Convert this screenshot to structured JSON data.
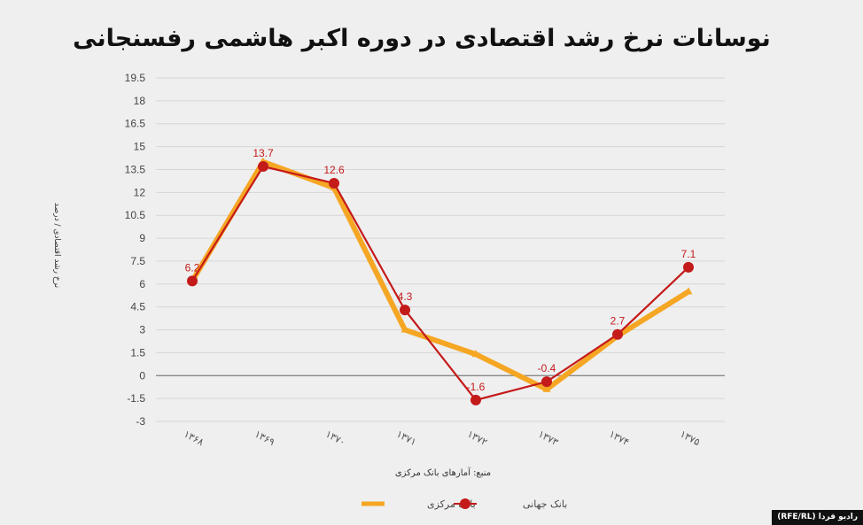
{
  "colors": {
    "background": "#efefef",
    "central_bank": "#f5a623",
    "world_bank": "#c41a1a",
    "label": "#c41a1a",
    "grid": "#d6d6d6",
    "zero_line": "#888888"
  },
  "credit": "رادیو فردا (RFE/RL)",
  "chart_data": {
    "type": "line",
    "title": "نوسانات نرخ رشد اقتصادی در دوره اکبر هاشمی رفسنجانی",
    "ylabel": "نرخ رشد اقتصادی / درصد",
    "source": "منبع: آمارهای بانک مرکزی",
    "categories": [
      "۱۳۶۸",
      "۱۳۶۹",
      "۱۳۷۰",
      "۱۳۷۱",
      "۱۳۷۲",
      "۱۳۷۳",
      "۱۳۷۴",
      "۱۳۷۵"
    ],
    "yticks": [
      "19.5",
      "18",
      "16.5",
      "15",
      "13.5",
      "12",
      "10.5",
      "9",
      "7.5",
      "6",
      "4.5",
      "3",
      "1.5",
      "0",
      "-1.5",
      "-3"
    ],
    "ylim": [
      -3,
      19.5
    ],
    "grid": true,
    "legend_position": "bottom",
    "series": [
      {
        "name": "بانک مرکزی",
        "values": [
          6.2,
          14.0,
          12.3,
          3.0,
          1.4,
          -0.9,
          2.6,
          5.5
        ]
      },
      {
        "name": "بانک جهانی",
        "values": [
          6.2,
          13.7,
          12.6,
          4.3,
          -1.6,
          -0.4,
          2.7,
          7.1
        ],
        "data_labels": [
          "6.2",
          "13.7",
          "12.6",
          "4.3",
          "-1.6",
          "-0.4",
          "2.7",
          "7.1"
        ]
      }
    ]
  }
}
